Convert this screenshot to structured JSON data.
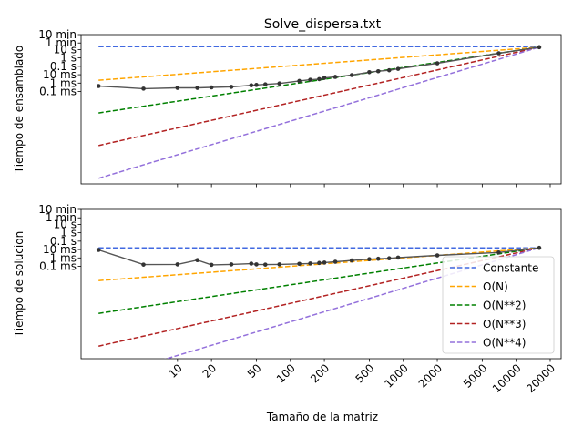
{
  "chart_data": {
    "type": "line",
    "title": "Solve_dispersa.txt",
    "xlabel": "Tamaño de la matriz",
    "x_scale": "log",
    "xlim": [
      1.4,
      25000
    ],
    "x_ticks": [
      {
        "value": 10,
        "label": "10"
      },
      {
        "value": 20,
        "label": "20"
      },
      {
        "value": 50,
        "label": "50"
      },
      {
        "value": 100,
        "label": "100"
      },
      {
        "value": 200,
        "label": "200"
      },
      {
        "value": 500,
        "label": "500"
      },
      {
        "value": 1000,
        "label": "1000"
      },
      {
        "value": 2000,
        "label": "2000"
      },
      {
        "value": 5000,
        "label": "5000"
      },
      {
        "value": 10000,
        "label": "10000"
      },
      {
        "value": 20000,
        "label": "20000"
      }
    ],
    "y_scale": "log",
    "y_unit": "seconds",
    "y_ticks": [
      {
        "value": 0.0001,
        "label": "0.1 ms"
      },
      {
        "value": 0.001,
        "label": "1 ms"
      },
      {
        "value": 0.01,
        "label": "10 ms"
      },
      {
        "value": 0.1,
        "label": "0.1 s"
      },
      {
        "value": 1,
        "label": "1 s"
      },
      {
        "value": 10,
        "label": "10 s"
      },
      {
        "value": 60,
        "label": "1 min"
      },
      {
        "value": 600,
        "label": "10 min"
      }
    ],
    "legend": {
      "location": "lower-right",
      "panel": "bottom",
      "entries": [
        {
          "label": "Constante",
          "color": "#4169e1"
        },
        {
          "label": "O(N)",
          "color": "#ffa500"
        },
        {
          "label": "O(N**2)",
          "color": "#008000"
        },
        {
          "label": "O(N**3)",
          "color": "#b22222"
        },
        {
          "label": "O(N**4)",
          "color": "#9370db"
        }
      ]
    },
    "measured_color": "#555555",
    "panels": [
      {
        "ylabel": "Tiempo de ensamblado",
        "ylim": [
          1e-15,
          600
        ],
        "measured": {
          "x": [
            2,
            5,
            10,
            15,
            20,
            30,
            45,
            50,
            60,
            80,
            120,
            150,
            180,
            200,
            250,
            350,
            500,
            600,
            750,
            900,
            2000,
            7000,
            16000
          ],
          "y": [
            0.00045,
            0.00022,
            0.00027,
            0.00027,
            0.00031,
            0.00036,
            0.00055,
            0.0006,
            0.0007,
            0.0009,
            0.0018,
            0.0025,
            0.003,
            0.0042,
            0.0055,
            0.009,
            0.02,
            0.026,
            0.034,
            0.05,
            0.23,
            3.6,
            19
          ]
        },
        "reference": {
          "x": [
            2,
            16000
          ],
          "Constante": [
            22,
            22
          ],
          "O(N)": [
            0.0022,
            19
          ],
          "O(N**2)": [
            2.8e-07,
            19
          ],
          "O(N**3)": [
            3.7e-11,
            19
          ],
          "O(N**4)": [
            4.7e-15,
            19
          ]
        }
      },
      {
        "ylabel": "Tiempo de solucion",
        "ylim": [
          1e-15,
          600
        ],
        "measured": {
          "x": [
            2,
            5,
            10,
            15,
            20,
            30,
            45,
            50,
            60,
            80,
            120,
            150,
            180,
            200,
            250,
            350,
            500,
            600,
            750,
            900,
            2000,
            7000,
            16000
          ],
          "y": [
            0.009,
            0.00016,
            0.00017,
            0.00055,
            0.00015,
            0.00017,
            0.00021,
            0.00017,
            0.00016,
            0.00017,
            0.0002,
            0.00022,
            0.00025,
            0.00028,
            0.00035,
            0.0005,
            0.0007,
            0.0008,
            0.0009,
            0.0011,
            0.002,
            0.0045,
            0.016
          ]
        },
        "reference": {
          "x": [
            2,
            16000
          ],
          "Constante": [
            0.016,
            0.016
          ],
          "O(N)": [
            2e-06,
            0.016
          ],
          "O(N**2)": [
            2.5e-10,
            0.016
          ],
          "O(N**3)": [
            3.1e-14,
            0.016
          ],
          "O(N**4)": [
            3.9e-18,
            0.016
          ]
        }
      }
    ]
  }
}
